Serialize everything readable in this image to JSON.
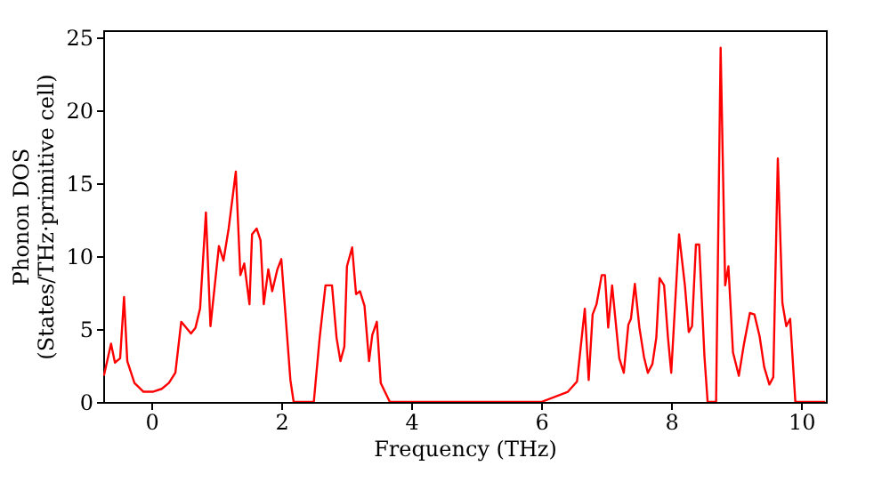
{
  "chart_data": {
    "type": "line",
    "xlabel": "Frequency (THz)",
    "ylabel": "Phonon DOS\n(States/THz·primitive cell)",
    "xlim": [
      -0.74,
      10.38
    ],
    "xticks": [
      0,
      2,
      4,
      6,
      8,
      10
    ],
    "ylim": [
      0,
      25.5
    ],
    "yticks": [
      0,
      5,
      10,
      15,
      20,
      25
    ],
    "grid": false,
    "marker": "none",
    "line_style": "solid",
    "series": [
      {
        "color": "#ff0000",
        "x": [
          -0.73,
          -0.62,
          -0.56,
          -0.48,
          -0.42,
          -0.37,
          -0.26,
          -0.12,
          0.02,
          0.16,
          0.27,
          0.37,
          0.46,
          0.61,
          0.68,
          0.75,
          0.84,
          0.91,
          1.04,
          1.11,
          1.19,
          1.3,
          1.37,
          1.43,
          1.51,
          1.55,
          1.62,
          1.68,
          1.73,
          1.8,
          1.86,
          1.94,
          2.0,
          2.14,
          2.19,
          2.5,
          2.59,
          2.68,
          2.78,
          2.85,
          2.91,
          2.97,
          3.01,
          3.09,
          3.15,
          3.21,
          3.28,
          3.35,
          3.4,
          3.47,
          3.53,
          3.67,
          6.0,
          6.41,
          6.55,
          6.67,
          6.73,
          6.79,
          6.85,
          6.93,
          6.98,
          7.03,
          7.09,
          7.2,
          7.27,
          7.34,
          7.38,
          7.44,
          7.51,
          7.58,
          7.64,
          7.71,
          7.77,
          7.82,
          7.89,
          7.95,
          8.0,
          8.12,
          8.21,
          8.27,
          8.32,
          8.38,
          8.43,
          8.51,
          8.56,
          8.69,
          8.76,
          8.83,
          8.88,
          8.95,
          9.04,
          9.12,
          9.21,
          9.28,
          9.36,
          9.43,
          9.51,
          9.57,
          9.64,
          9.71,
          9.77,
          9.83,
          9.91,
          10.37
        ],
        "values": [
          1.8,
          4.0,
          2.7,
          3.0,
          7.2,
          2.8,
          1.3,
          0.7,
          0.7,
          0.9,
          1.3,
          2.0,
          5.5,
          4.7,
          5.1,
          6.4,
          13.0,
          5.2,
          10.7,
          9.7,
          11.9,
          15.8,
          8.7,
          9.5,
          6.7,
          11.5,
          11.9,
          11.1,
          6.7,
          9.1,
          7.6,
          9.1,
          9.8,
          1.5,
          0,
          0,
          4.4,
          8.0,
          8.0,
          4.4,
          2.8,
          3.8,
          9.3,
          10.6,
          7.4,
          7.6,
          6.6,
          2.8,
          4.6,
          5.5,
          1.3,
          0,
          0,
          0.7,
          1.4,
          6.4,
          1.5,
          6.0,
          6.7,
          8.7,
          8.7,
          5.1,
          8.0,
          3.0,
          2.0,
          5.3,
          5.7,
          8.1,
          5.1,
          3.1,
          2.0,
          2.6,
          4.4,
          8.5,
          8.0,
          4.4,
          2.0,
          11.5,
          8.0,
          4.8,
          5.2,
          10.8,
          10.8,
          3.2,
          0,
          0,
          24.3,
          8.0,
          9.3,
          3.4,
          1.8,
          4.0,
          6.1,
          6.0,
          4.5,
          2.4,
          1.2,
          1.7,
          16.7,
          6.8,
          5.2,
          5.7,
          0,
          0
        ]
      }
    ]
  }
}
